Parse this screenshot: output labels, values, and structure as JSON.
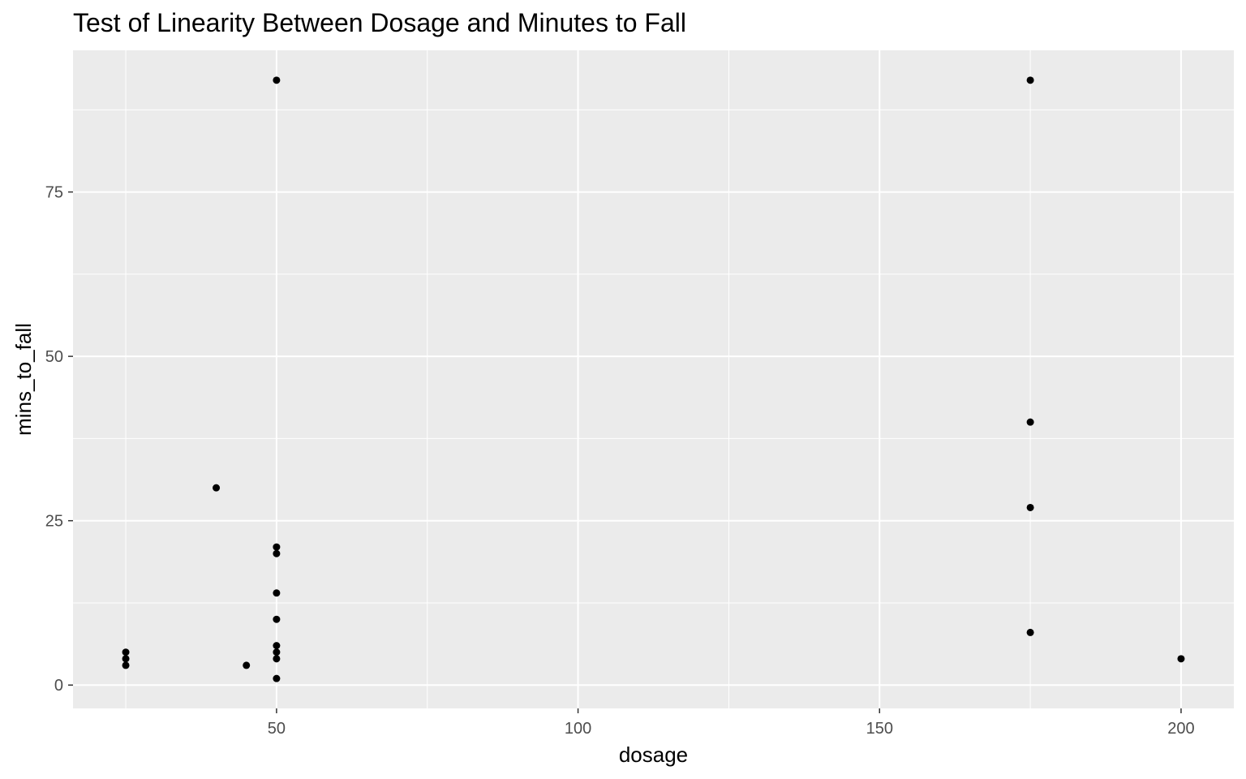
{
  "chart_data": {
    "type": "scatter",
    "title": "Test of Linearity Between Dosage and Minutes to Fall",
    "xlabel": "dosage",
    "ylabel": "mins_to_fall",
    "xlim": [
      16.25,
      208.75
    ],
    "ylim": [
      -3.55,
      96.55
    ],
    "x_ticks": [
      50,
      100,
      150,
      200
    ],
    "y_ticks": [
      0,
      25,
      50,
      75
    ],
    "grid": true,
    "legend": "none",
    "colors": {
      "panel": "#EBEBEB",
      "grid": "#FFFFFF",
      "point": "#000000",
      "tick": "#333333"
    },
    "points": [
      {
        "x": 25,
        "y": 5
      },
      {
        "x": 25,
        "y": 4
      },
      {
        "x": 25,
        "y": 3
      },
      {
        "x": 40,
        "y": 30
      },
      {
        "x": 45,
        "y": 3
      },
      {
        "x": 50,
        "y": 92
      },
      {
        "x": 50,
        "y": 21
      },
      {
        "x": 50,
        "y": 20
      },
      {
        "x": 50,
        "y": 14
      },
      {
        "x": 50,
        "y": 10
      },
      {
        "x": 50,
        "y": 6
      },
      {
        "x": 50,
        "y": 5
      },
      {
        "x": 50,
        "y": 4
      },
      {
        "x": 50,
        "y": 1
      },
      {
        "x": 175,
        "y": 92
      },
      {
        "x": 175,
        "y": 40
      },
      {
        "x": 175,
        "y": 27
      },
      {
        "x": 175,
        "y": 8
      },
      {
        "x": 200,
        "y": 4
      }
    ]
  }
}
